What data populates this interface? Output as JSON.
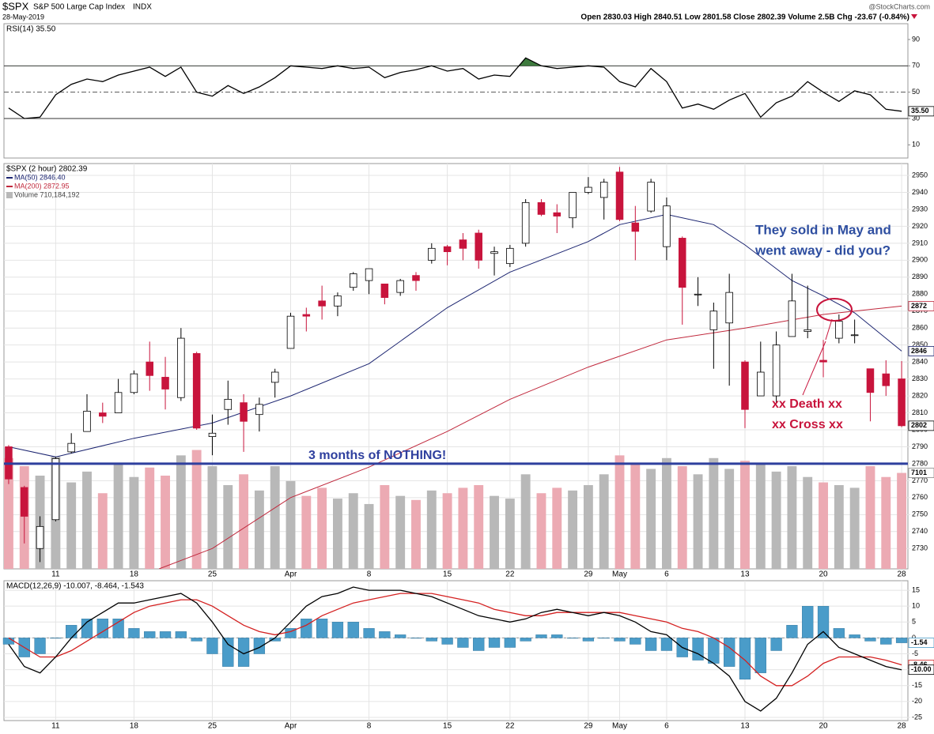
{
  "header": {
    "symbol": "$SPX",
    "name": "S&P 500 Large Cap Index",
    "exchange": "INDX",
    "date": "28-May-2019",
    "quote": "Open 2830.03  High 2840.51  Low 2801.58  Close 2802.39  Volume 2.5B  Chg -23.67 (-0.84%)",
    "source": "@StockCharts.com"
  },
  "chart_data": [
    {
      "type": "line",
      "label": "RSI(14) 35.50",
      "xlim": [
        -0.3,
        57.4
      ],
      "ylim": [
        0,
        102
      ],
      "yticks": [
        10,
        30,
        50,
        70,
        90
      ],
      "hlines": [
        70,
        30
      ],
      "dashed_hlines": [
        50
      ],
      "fill_above": 70,
      "fill_color": "#3d7a3d",
      "series": [
        {
          "color": "#000000",
          "flag": "35.50",
          "values": [
            38,
            30,
            31,
            48,
            56,
            60,
            58,
            63,
            66,
            69,
            62,
            69,
            50,
            47,
            55,
            49,
            54,
            61,
            70,
            69,
            68,
            70,
            68,
            69,
            61,
            65,
            67,
            70,
            66,
            68,
            60,
            63,
            62,
            76,
            70,
            68,
            69,
            70,
            69,
            58,
            54,
            68,
            58,
            38,
            41,
            37,
            44,
            49,
            31,
            42,
            47,
            58,
            50,
            43,
            51,
            48,
            37,
            35.5
          ]
        }
      ]
    },
    {
      "type": "candlestick",
      "label": "$SPX (2 hour) 2802.39",
      "xlim": [
        -0.3,
        57.4
      ],
      "ylim": [
        2718,
        2957
      ],
      "yticks": [
        2730,
        2740,
        2750,
        2760,
        2770,
        2780,
        2790,
        2800,
        2810,
        2820,
        2830,
        2840,
        2850,
        2860,
        2870,
        2880,
        2890,
        2900,
        2910,
        2920,
        2930,
        2940,
        2950
      ],
      "xticks": [
        {
          "value": 3,
          "label": "11"
        },
        {
          "value": 8,
          "label": "18"
        },
        {
          "value": 13,
          "label": "25"
        },
        {
          "value": 18,
          "label": "Apr"
        },
        {
          "value": 23,
          "label": "8"
        },
        {
          "value": 28,
          "label": "15"
        },
        {
          "value": 32,
          "label": "22"
        },
        {
          "value": 37,
          "label": "29"
        },
        {
          "value": 39,
          "label": "May"
        },
        {
          "value": 42,
          "label": "6"
        },
        {
          "value": 47,
          "label": "13"
        },
        {
          "value": 52,
          "label": "20"
        },
        {
          "value": 57,
          "label": "28"
        }
      ],
      "grid": true,
      "up_color": "#ffffff",
      "down_color": "#c8143c",
      "flag": "2802",
      "candles": {
        "open": [
          2790,
          2766,
          2730,
          2747,
          2787,
          2799,
          2810,
          2810,
          2822,
          2840,
          2831,
          2819,
          2845,
          2796,
          2812,
          2816,
          2809,
          2828,
          2848,
          2868,
          2876,
          2873,
          2884,
          2888,
          2886,
          2881,
          2891,
          2900,
          2908,
          2912,
          2916,
          2904,
          2898,
          2910,
          2934,
          2928,
          2925,
          2940,
          2937,
          2952,
          2922,
          2929,
          2908,
          2913,
          2880,
          2859,
          2863,
          2840,
          2820,
          2820,
          2855,
          2858,
          2841,
          2854,
          2856,
          2836,
          2833,
          2830.03
        ],
        "high": [
          2791,
          2767,
          2749,
          2784,
          2798,
          2821,
          2816,
          2830,
          2835,
          2852,
          2843,
          2860,
          2846,
          2809,
          2829,
          2821,
          2819,
          2836,
          2869,
          2872,
          2885,
          2881,
          2893,
          2895,
          2886,
          2889,
          2893,
          2910,
          2909,
          2916,
          2918,
          2908,
          2909,
          2936,
          2936,
          2933,
          2940,
          2949,
          2948,
          2955,
          2932,
          2948,
          2937,
          2914,
          2890,
          2875,
          2892,
          2841,
          2852,
          2858,
          2892,
          2885,
          2853,
          2868,
          2865,
          2836,
          2841,
          2840.51
        ],
        "low": [
          2768,
          2733,
          2722,
          2746,
          2786,
          2799,
          2804,
          2810,
          2821,
          2823,
          2812,
          2817,
          2800,
          2785,
          2803,
          2787,
          2799,
          2819,
          2848,
          2858,
          2865,
          2867,
          2882,
          2880,
          2874,
          2879,
          2882,
          2898,
          2897,
          2900,
          2895,
          2891,
          2896,
          2908,
          2926,
          2916,
          2919,
          2939,
          2924,
          2923,
          2900,
          2928,
          2900,
          2862,
          2873,
          2836,
          2826,
          2801,
          2820,
          2816,
          2855,
          2854,
          2831,
          2851,
          2851,
          2805,
          2820,
          2801.58
        ],
        "close": [
          2771,
          2749,
          2743,
          2783,
          2792,
          2811,
          2808,
          2822,
          2833,
          2832,
          2824,
          2854,
          2801,
          2798,
          2818,
          2805,
          2815,
          2834,
          2867,
          2867,
          2873,
          2879,
          2892,
          2895,
          2878,
          2888,
          2888,
          2907,
          2905,
          2907,
          2900,
          2905,
          2907,
          2934,
          2927,
          2926,
          2940,
          2943,
          2946,
          2924,
          2917,
          2946,
          2932,
          2884,
          2880,
          2870,
          2881,
          2812,
          2834,
          2850,
          2876,
          2859,
          2840,
          2864,
          2856,
          2822,
          2826,
          2802.39
        ]
      },
      "series": [
        {
          "name": "MA(50) 2846.40",
          "color": "#1b2470",
          "flag": "2846",
          "x": [
            0,
            3,
            8,
            13,
            18,
            23,
            28,
            32,
            37,
            39,
            42,
            45,
            47,
            50,
            52,
            54,
            57
          ],
          "values": [
            2790,
            2784,
            2795,
            2804,
            2820,
            2839,
            2872,
            2893,
            2911,
            2921,
            2927,
            2921,
            2909,
            2888,
            2879,
            2869,
            2846.4
          ]
        },
        {
          "name": "MA(200) 2872.95",
          "color": "#c0283c",
          "flag": "2872",
          "x": [
            9.6,
            13,
            18,
            23,
            28,
            32,
            37,
            42,
            47,
            52,
            57
          ],
          "values": [
            2718,
            2730,
            2760,
            2778,
            2799,
            2818,
            2837,
            2853,
            2860,
            2868,
            2872.95
          ]
        }
      ],
      "volume": {
        "name": "Volume 710,184,192",
        "vlim": [
          0,
          3000000000
        ],
        "up_color": "#b8b8b8",
        "down_color": "#ecaab3",
        "flag": "7101",
        "values": [
          820000000,
          760000000,
          690000000,
          830000000,
          640000000,
          720000000,
          560000000,
          780000000,
          680000000,
          750000000,
          690000000,
          840000000,
          880000000,
          760000000,
          620000000,
          700000000,
          580000000,
          760000000,
          650000000,
          540000000,
          600000000,
          520000000,
          560000000,
          480000000,
          620000000,
          540000000,
          510000000,
          580000000,
          560000000,
          600000000,
          620000000,
          540000000,
          520000000,
          700000000,
          560000000,
          600000000,
          580000000,
          620000000,
          700000000,
          840000000,
          780000000,
          740000000,
          820000000,
          760000000,
          700000000,
          820000000,
          740000000,
          800000000,
          780000000,
          720000000,
          760000000,
          680000000,
          640000000,
          620000000,
          600000000,
          760000000,
          680000000,
          710184192
        ]
      },
      "hline": {
        "value": 2780,
        "color": "#2e3f9e"
      },
      "annotations": [
        "They sold in May and",
        "went away - did you?",
        "3 months of NOTHING!",
        "xx Death xx",
        "xx Cross xx"
      ]
    },
    {
      "type": "line",
      "label": "MACD(12,26,9) -10.007, -8.464, -1.543",
      "xlim": [
        -0.3,
        57.4
      ],
      "ylim": [
        -26,
        18
      ],
      "yticks": [
        -25,
        -20,
        -15,
        -10,
        -5,
        0,
        5,
        10,
        15
      ],
      "xticks": [
        {
          "value": 3,
          "label": "11"
        },
        {
          "value": 8,
          "label": "18"
        },
        {
          "value": 13,
          "label": "25"
        },
        {
          "value": 18,
          "label": "Apr"
        },
        {
          "value": 23,
          "label": "8"
        },
        {
          "value": 28,
          "label": "15"
        },
        {
          "value": 32,
          "label": "22"
        },
        {
          "value": 37,
          "label": "29"
        },
        {
          "value": 39,
          "label": "May"
        },
        {
          "value": 42,
          "label": "6"
        },
        {
          "value": 47,
          "label": "13"
        },
        {
          "value": 52,
          "label": "20"
        },
        {
          "value": 57,
          "label": "28"
        }
      ],
      "grid": true,
      "series": [
        {
          "color": "#4a9cc9",
          "style": "bar",
          "flag": "-1.54",
          "values": [
            -2,
            -6,
            -5,
            0,
            4,
            6,
            6,
            6,
            3,
            2,
            2,
            2,
            -1,
            -5,
            -9,
            -9,
            -5,
            -1,
            3,
            6,
            6,
            5,
            5,
            3,
            2,
            1,
            0,
            -1,
            -2,
            -3,
            -4,
            -3,
            -3,
            -1,
            1,
            1,
            0,
            -1,
            0,
            -1,
            -2,
            -4,
            -4,
            -6,
            -7,
            -8,
            -9,
            -13,
            -11,
            -4,
            4,
            10,
            10,
            3,
            1,
            -1,
            -2,
            -1.543
          ]
        },
        {
          "color": "#d42020",
          "flag": "-8.46",
          "values": [
            0,
            -3,
            -6,
            -6,
            -4,
            -1,
            2,
            5,
            8,
            10,
            11,
            12,
            12,
            10,
            7,
            4,
            2,
            1,
            2,
            4,
            7,
            9,
            11,
            12,
            13,
            14,
            14,
            14,
            13,
            12,
            11,
            9,
            8,
            7,
            7,
            8,
            8,
            8,
            8,
            8,
            7,
            6,
            5,
            3,
            2,
            0,
            -3,
            -7,
            -12,
            -15,
            -15,
            -12,
            -8,
            -6,
            -6,
            -6,
            -7,
            -8.464
          ]
        },
        {
          "color": "#000000",
          "flag": "-10.00",
          "values": [
            -2,
            -9,
            -11,
            -6,
            0,
            5,
            8,
            11,
            11,
            12,
            13,
            14,
            11,
            5,
            -2,
            -5,
            -3,
            0,
            5,
            10,
            13,
            14,
            16,
            15,
            15,
            15,
            14,
            13,
            11,
            9,
            7,
            6,
            5,
            6,
            8,
            9,
            8,
            7,
            8,
            7,
            5,
            2,
            1,
            -3,
            -5,
            -8,
            -12,
            -20,
            -23,
            -19,
            -11,
            -2,
            2,
            -3,
            -5,
            -7,
            -9,
            -10.007
          ]
        }
      ]
    }
  ]
}
